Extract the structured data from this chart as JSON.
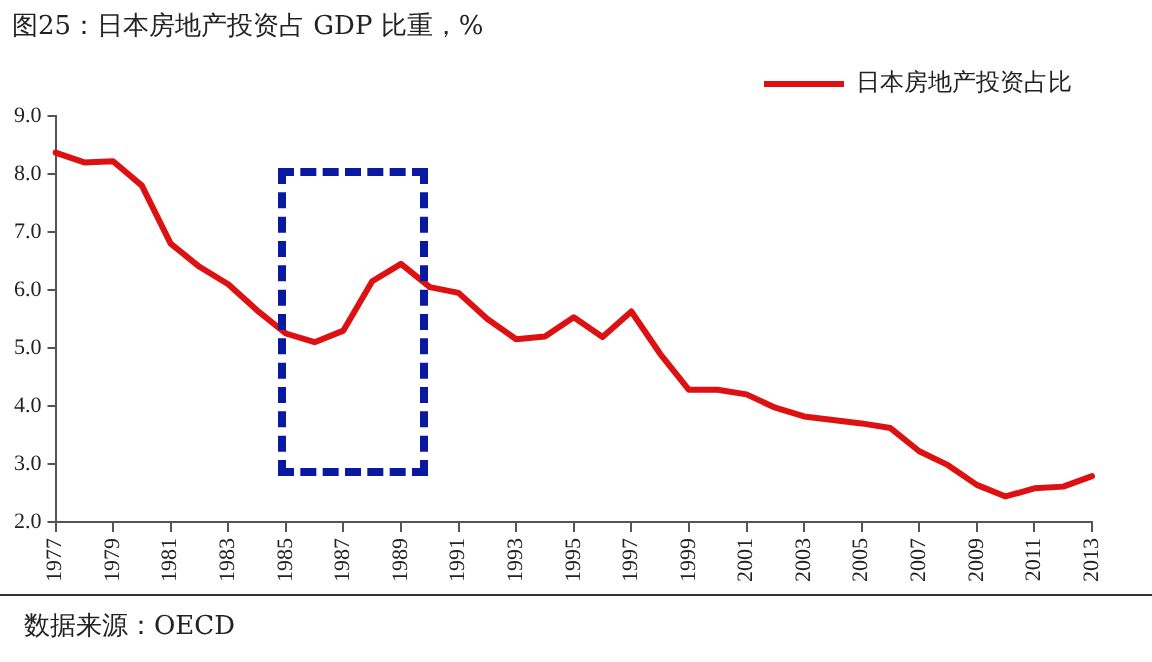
{
  "chart_data": {
    "type": "line",
    "title": "图25：日本房地产投资占 GDP 比重，%",
    "categories": [
      "1977",
      null,
      "1979",
      null,
      "1981",
      null,
      "1983",
      null,
      "1985",
      null,
      "1987",
      null,
      "1989",
      null,
      "1991",
      null,
      "1993",
      null,
      "1995",
      null,
      "1997",
      null,
      "1999",
      null,
      "2001",
      null,
      "2003",
      null,
      "2005",
      null,
      "2007",
      null,
      "2009",
      null,
      "2011",
      null,
      "2013"
    ],
    "series": [
      {
        "name": "日本房地产投资占比",
        "color": "#dd1111",
        "values": [
          8.37,
          8.2,
          8.22,
          7.8,
          6.8,
          6.4,
          6.1,
          5.65,
          5.25,
          5.1,
          5.3,
          6.15,
          6.45,
          6.05,
          5.95,
          5.5,
          5.15,
          5.2,
          5.53,
          5.19,
          5.63,
          4.9,
          4.28,
          4.28,
          4.2,
          3.97,
          3.82,
          3.76,
          3.7,
          3.62,
          3.22,
          2.98,
          2.64,
          2.44,
          2.58,
          2.61,
          2.79
        ]
      }
    ],
    "ylim": [
      2,
      9
    ],
    "yticks": [
      {
        "value": 2,
        "label": "2.0"
      },
      {
        "value": 3,
        "label": "3.0"
      },
      {
        "value": 4,
        "label": "4.0"
      },
      {
        "value": 5,
        "label": "5.0"
      },
      {
        "value": 6,
        "label": "6.0"
      },
      {
        "value": 7,
        "label": "7.0"
      },
      {
        "value": 8,
        "label": "8.0"
      },
      {
        "value": 9,
        "label": "9.0"
      }
    ],
    "legend": "top right",
    "grid": false,
    "marker": "none",
    "line_style": "solid",
    "annotations": [
      "数据来源：OECD"
    ]
  }
}
